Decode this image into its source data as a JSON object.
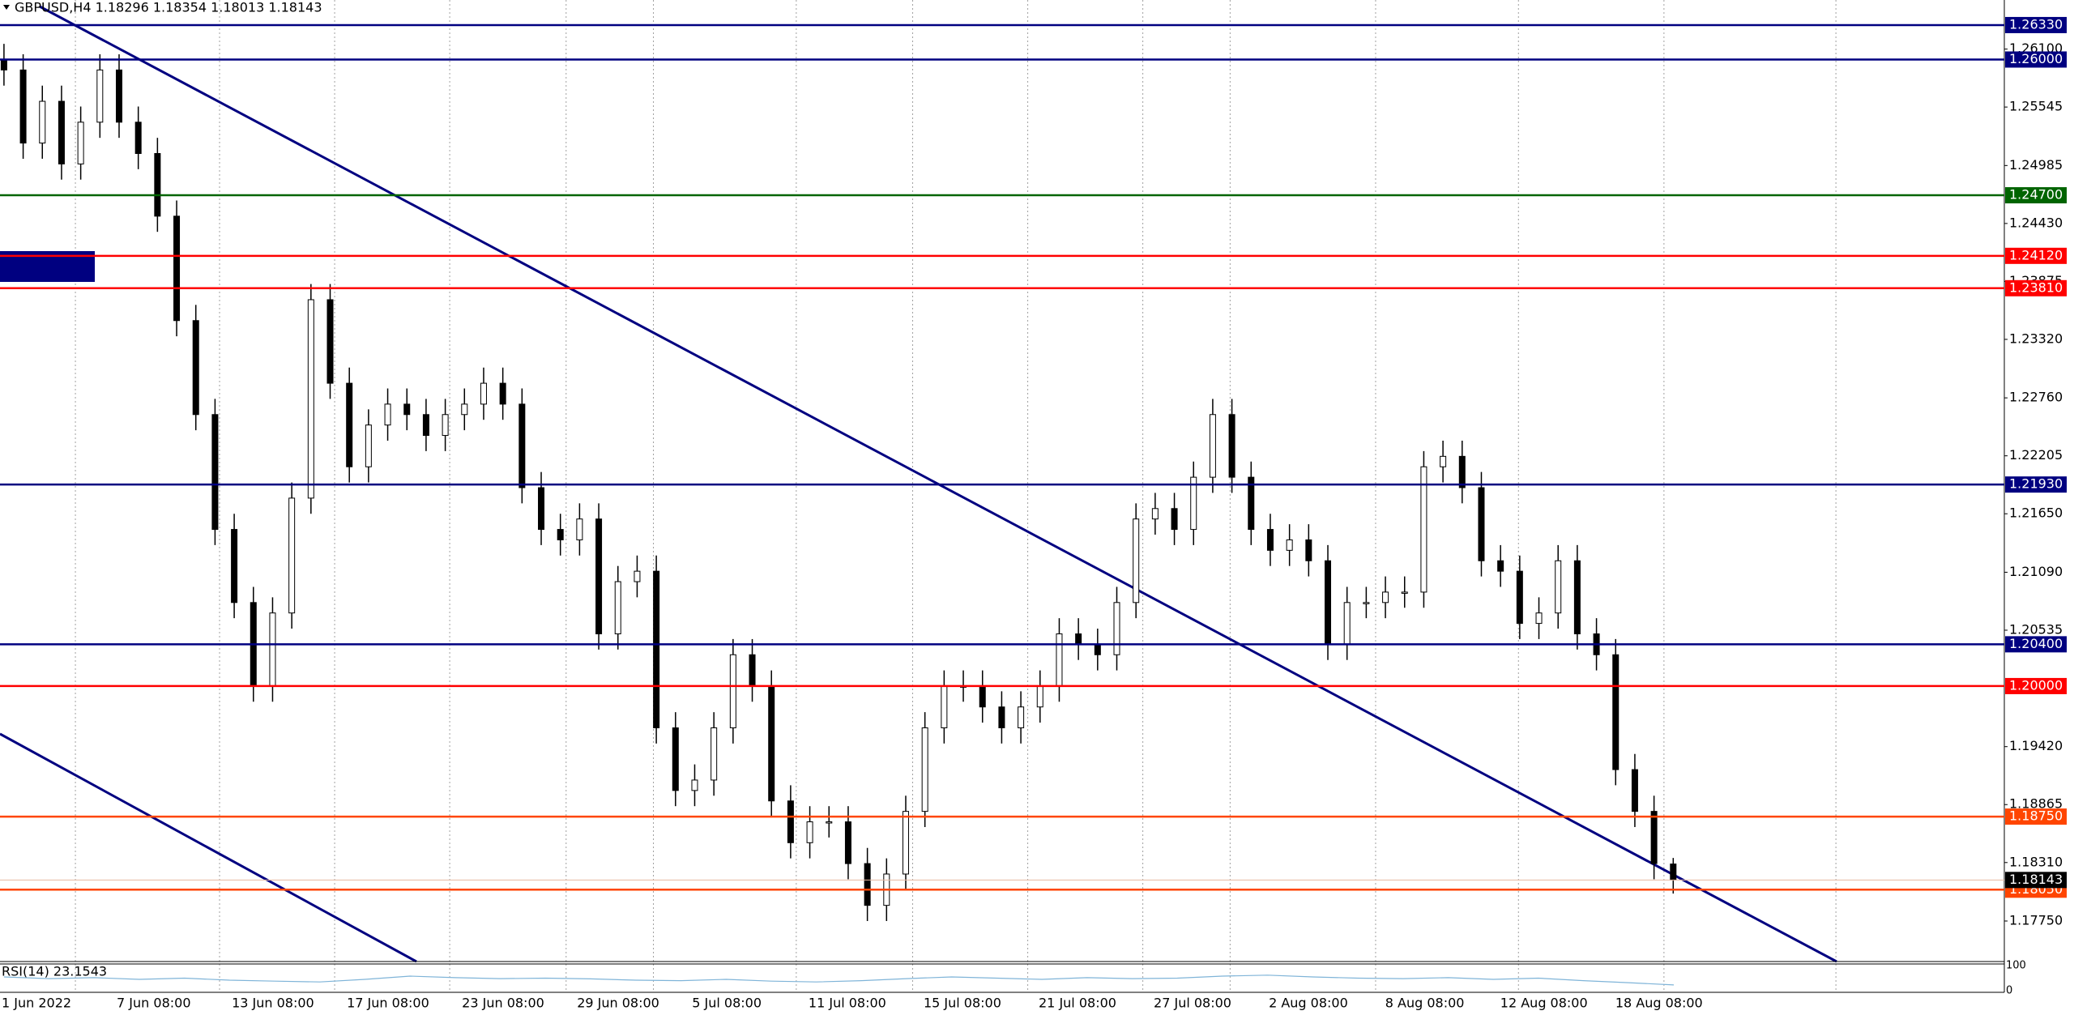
{
  "chart_data": {
    "type": "candlestick",
    "title": "GBPUSD,H4  1.18296 1.18354 1.18013 1.18143",
    "ylim": [
      1.17362,
      1.2657
    ],
    "yticks": [
      {
        "value": 1.261,
        "label": "1.26100"
      },
      {
        "value": 1.25545,
        "label": "1.25545"
      },
      {
        "value": 1.24985,
        "label": "1.24985"
      },
      {
        "value": 1.2443,
        "label": "1.24430"
      },
      {
        "value": 1.23875,
        "label": "1.23875"
      },
      {
        "value": 1.2332,
        "label": "1.23320"
      },
      {
        "value": 1.2276,
        "label": "1.22760"
      },
      {
        "value": 1.22205,
        "label": "1.22205"
      },
      {
        "value": 1.2165,
        "label": "1.21650"
      },
      {
        "value": 1.2109,
        "label": "1.21090"
      },
      {
        "value": 1.20535,
        "label": "1.20535"
      },
      {
        "value": 1.1942,
        "label": "1.19420"
      },
      {
        "value": 1.18865,
        "label": "1.18865"
      },
      {
        "value": 1.1831,
        "label": "1.18310"
      },
      {
        "value": 1.1775,
        "label": "1.17750"
      }
    ],
    "levels": [
      {
        "value": 1.2633,
        "label": "1.26330",
        "color": "#000080"
      },
      {
        "value": 1.26,
        "label": "1.26000",
        "color": "#000080"
      },
      {
        "value": 1.247,
        "label": "1.24700",
        "color": "#006400"
      },
      {
        "value": 1.2412,
        "label": "1.24120",
        "color": "#ff0000"
      },
      {
        "value": 1.2381,
        "label": "1.23810",
        "color": "#ff0000"
      },
      {
        "value": 1.2193,
        "label": "1.21930",
        "color": "#000080"
      },
      {
        "value": 1.204,
        "label": "1.20400",
        "color": "#000080"
      },
      {
        "value": 1.2,
        "label": "1.20000",
        "color": "#ff0000"
      },
      {
        "value": 1.1875,
        "label": "1.18750",
        "color": "#ff4500"
      },
      {
        "value": 1.1805,
        "label": "1.18050",
        "color": "#ff4500"
      }
    ],
    "current": {
      "value": 1.18143,
      "label": "1.18143",
      "color": "#000000"
    },
    "categories": [
      "1 Jun 2022",
      "7 Jun 08:00",
      "13 Jun 08:00",
      "17 Jun 08:00",
      "23 Jun 08:00",
      "29 Jun 08:00",
      "5 Jul 08:00",
      "11 Jul 08:00",
      "15 Jul 08:00",
      "21 Jul 08:00",
      "27 Jul 08:00",
      "2 Aug 08:00",
      "8 Aug 08:00",
      "12 Aug 08:00",
      "18 Aug 08:00"
    ],
    "candles": [
      [
        1.26,
        1.2615,
        1.2575,
        1.259
      ],
      [
        1.259,
        1.2605,
        1.2505,
        1.252
      ],
      [
        1.252,
        1.2575,
        1.2505,
        1.256
      ],
      [
        1.256,
        1.2575,
        1.2485,
        1.25
      ],
      [
        1.25,
        1.2555,
        1.2485,
        1.254
      ],
      [
        1.254,
        1.2605,
        1.2525,
        1.259
      ],
      [
        1.259,
        1.2605,
        1.2525,
        1.254
      ],
      [
        1.254,
        1.2555,
        1.2495,
        1.251
      ],
      [
        1.251,
        1.2525,
        1.2435,
        1.245
      ],
      [
        1.245,
        1.2465,
        1.2335,
        1.235
      ],
      [
        1.235,
        1.2365,
        1.2245,
        1.226
      ],
      [
        1.226,
        1.2275,
        1.2135,
        1.215
      ],
      [
        1.215,
        1.2165,
        1.2065,
        1.208
      ],
      [
        1.208,
        1.2095,
        1.1985,
        1.2
      ],
      [
        1.2,
        1.2085,
        1.1985,
        1.207
      ],
      [
        1.207,
        1.2195,
        1.2055,
        1.218
      ],
      [
        1.218,
        1.2385,
        1.2165,
        1.237
      ],
      [
        1.237,
        1.2385,
        1.2275,
        1.229
      ],
      [
        1.229,
        1.2305,
        1.2195,
        1.221
      ],
      [
        1.221,
        1.2265,
        1.2195,
        1.225
      ],
      [
        1.225,
        1.2285,
        1.2235,
        1.227
      ],
      [
        1.227,
        1.2285,
        1.2245,
        1.226
      ],
      [
        1.226,
        1.2275,
        1.2225,
        1.224
      ],
      [
        1.224,
        1.2275,
        1.2225,
        1.226
      ],
      [
        1.226,
        1.2285,
        1.2245,
        1.227
      ],
      [
        1.227,
        1.2305,
        1.2255,
        1.229
      ],
      [
        1.229,
        1.2305,
        1.2255,
        1.227
      ],
      [
        1.227,
        1.2285,
        1.2175,
        1.219
      ],
      [
        1.219,
        1.2205,
        1.2135,
        1.215
      ],
      [
        1.215,
        1.2165,
        1.2125,
        1.214
      ],
      [
        1.214,
        1.2175,
        1.2125,
        1.216
      ],
      [
        1.216,
        1.2175,
        1.2035,
        1.205
      ],
      [
        1.205,
        1.2115,
        1.2035,
        1.21
      ],
      [
        1.21,
        1.2125,
        1.2085,
        1.211
      ],
      [
        1.211,
        1.2125,
        1.1945,
        1.196
      ],
      [
        1.196,
        1.1975,
        1.1885,
        1.19
      ],
      [
        1.19,
        1.1925,
        1.1885,
        1.191
      ],
      [
        1.191,
        1.1975,
        1.1895,
        1.196
      ],
      [
        1.196,
        1.2045,
        1.1945,
        1.203
      ],
      [
        1.203,
        1.2045,
        1.1985,
        1.2
      ],
      [
        1.2,
        1.2015,
        1.1875,
        1.189
      ],
      [
        1.189,
        1.1905,
        1.1835,
        1.185
      ],
      [
        1.185,
        1.1885,
        1.1835,
        1.187
      ],
      [
        1.187,
        1.1885,
        1.1855,
        1.187
      ],
      [
        1.187,
        1.1885,
        1.1815,
        1.183
      ],
      [
        1.183,
        1.1845,
        1.1775,
        1.179
      ],
      [
        1.179,
        1.1835,
        1.1775,
        1.182
      ],
      [
        1.182,
        1.1895,
        1.1805,
        1.188
      ],
      [
        1.188,
        1.1975,
        1.1865,
        1.196
      ],
      [
        1.196,
        1.2015,
        1.1945,
        1.2
      ],
      [
        1.2,
        1.2015,
        1.1985,
        1.2
      ],
      [
        1.2,
        1.2015,
        1.1965,
        1.198
      ],
      [
        1.198,
        1.1995,
        1.1945,
        1.196
      ],
      [
        1.196,
        1.1995,
        1.1945,
        1.198
      ],
      [
        1.198,
        1.2015,
        1.1965,
        1.2
      ],
      [
        1.2,
        1.2065,
        1.1985,
        1.205
      ],
      [
        1.205,
        1.2065,
        1.2025,
        1.204
      ],
      [
        1.204,
        1.2055,
        1.2015,
        1.203
      ],
      [
        1.203,
        1.2095,
        1.2015,
        1.208
      ],
      [
        1.208,
        1.2175,
        1.2065,
        1.216
      ],
      [
        1.216,
        1.2185,
        1.2145,
        1.217
      ],
      [
        1.217,
        1.2185,
        1.2135,
        1.215
      ],
      [
        1.215,
        1.2215,
        1.2135,
        1.22
      ],
      [
        1.22,
        1.2275,
        1.2185,
        1.226
      ],
      [
        1.226,
        1.2275,
        1.2185,
        1.22
      ],
      [
        1.22,
        1.2215,
        1.2135,
        1.215
      ],
      [
        1.215,
        1.2165,
        1.2115,
        1.213
      ],
      [
        1.213,
        1.2155,
        1.2115,
        1.214
      ],
      [
        1.214,
        1.2155,
        1.2105,
        1.212
      ],
      [
        1.212,
        1.2135,
        1.2025,
        1.204
      ],
      [
        1.204,
        1.2095,
        1.2025,
        1.208
      ],
      [
        1.208,
        1.2095,
        1.2065,
        1.208
      ],
      [
        1.208,
        1.2105,
        1.2065,
        1.209
      ],
      [
        1.209,
        1.2105,
        1.2075,
        1.209
      ],
      [
        1.209,
        1.2225,
        1.2075,
        1.221
      ],
      [
        1.221,
        1.2235,
        1.2195,
        1.222
      ],
      [
        1.222,
        1.2235,
        1.2175,
        1.219
      ],
      [
        1.219,
        1.2205,
        1.2105,
        1.212
      ],
      [
        1.212,
        1.2135,
        1.2095,
        1.211
      ],
      [
        1.211,
        1.2125,
        1.2045,
        1.206
      ],
      [
        1.206,
        1.2085,
        1.2045,
        1.207
      ],
      [
        1.207,
        1.2135,
        1.2055,
        1.212
      ],
      [
        1.212,
        1.2135,
        1.2035,
        1.205
      ],
      [
        1.205,
        1.2065,
        1.2015,
        1.203
      ],
      [
        1.203,
        1.2045,
        1.1905,
        1.192
      ],
      [
        1.192,
        1.1935,
        1.1865,
        1.188
      ],
      [
        1.188,
        1.1895,
        1.1815,
        1.183
      ],
      [
        1.18296,
        1.18354,
        1.18013,
        1.18143
      ]
    ],
    "rsi": {
      "label": "RSI(14) 23.1543",
      "ylim": [
        0,
        100
      ],
      "yticks": [
        100,
        0
      ],
      "values": [
        55,
        48,
        52,
        45,
        50,
        42,
        38,
        35,
        45,
        58,
        52,
        48,
        50,
        47,
        42,
        40,
        45,
        38,
        35,
        40,
        48,
        55,
        50,
        45,
        52,
        48,
        50,
        58,
        62,
        55,
        50,
        48,
        52,
        45,
        50,
        40,
        32,
        23
      ]
    }
  }
}
